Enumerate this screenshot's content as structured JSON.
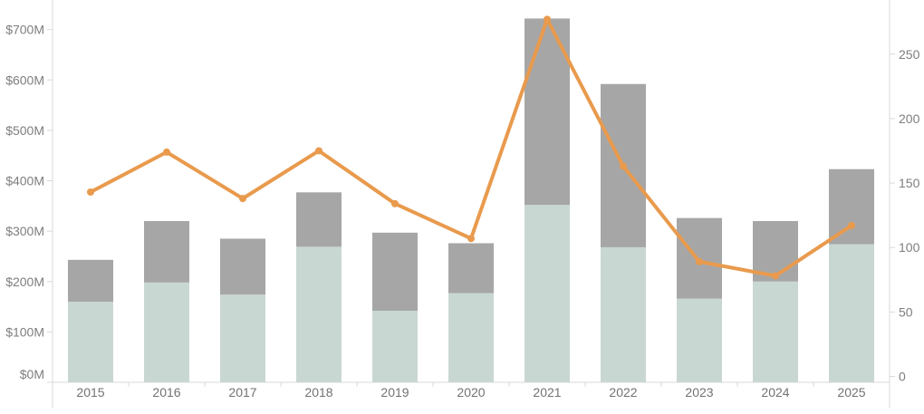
{
  "chart_data": {
    "type": "bar",
    "subtype": "stacked-bars-with-line-dual-axis",
    "title": "",
    "legend": "none",
    "grid": "off",
    "categories": [
      "2015",
      "2016",
      "2017",
      "2018",
      "2019",
      "2020",
      "2021",
      "2022",
      "2023",
      "2024",
      "2025"
    ],
    "series": [
      {
        "name": "bar-bottom-segment",
        "mark": "bar",
        "stack_order": 0,
        "axis": "left",
        "color": "#c9d7d3",
        "values": [
          160,
          198,
          174,
          269,
          142,
          177,
          352,
          268,
          166,
          200,
          274
        ]
      },
      {
        "name": "bar-top-segment",
        "mark": "bar",
        "stack_order": 1,
        "axis": "left",
        "color": "#a6a6a6",
        "values": [
          83,
          122,
          111,
          108,
          155,
          99,
          370,
          324,
          160,
          120,
          149
        ]
      },
      {
        "name": "line-series",
        "mark": "line",
        "axis": "right",
        "color": "#e99a4d",
        "values": [
          143,
          174,
          138,
          175,
          134,
          107,
          277,
          163,
          89,
          78,
          117
        ]
      }
    ],
    "stack_totals": [
      243,
      320,
      285,
      377,
      297,
      276,
      722,
      592,
      326,
      320,
      423
    ],
    "left_axis": {
      "unit": "$M",
      "tick_values": [
        0,
        100,
        200,
        300,
        400,
        500,
        600,
        700
      ],
      "tick_labels": [
        "$0M",
        "$100M",
        "$200M",
        "$300M",
        "$400M",
        "$500M",
        "$600M",
        "$700M"
      ],
      "range": [
        0,
        760
      ]
    },
    "right_axis": {
      "tick_values": [
        0,
        50,
        100,
        150,
        200,
        250
      ],
      "tick_labels": [
        "0",
        "50",
        "100",
        "150",
        "200",
        "250"
      ],
      "range": [
        0,
        292
      ]
    },
    "x_axis": {
      "tick_labels": [
        "2015",
        "2016",
        "2017",
        "2018",
        "2019",
        "2020",
        "2021",
        "2022",
        "2023",
        "2024",
        "2025"
      ]
    }
  },
  "colors": {
    "bar_bottom": "#c9d7d3",
    "bar_top": "#a6a6a6",
    "line": "#e99a4d",
    "axis_line": "#d9d9d9",
    "tick_text": "#7e7e7e",
    "year_text": "#727272",
    "background": "#ffffff"
  }
}
